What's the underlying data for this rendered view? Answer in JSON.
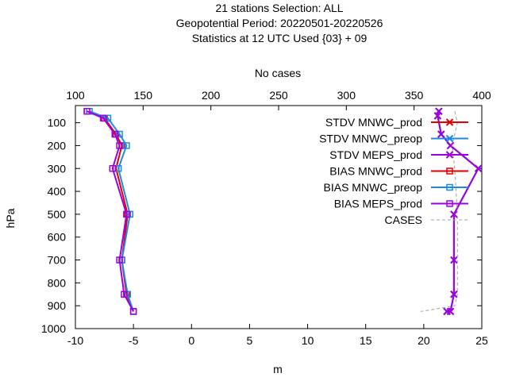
{
  "chart_data": {
    "type": "line",
    "title_lines": [
      "21 stations Selection: ALL",
      "Geopotential  Period: 20220501-20220526",
      "Statistics at 12 UTC  Used {03} + 09"
    ],
    "xlabel": "m",
    "ylabel": "hPa",
    "x2label": "No cases",
    "xlim": [
      -10,
      25
    ],
    "ylim": [
      1000,
      25
    ],
    "y_reversed": true,
    "x2lim": [
      100,
      400
    ],
    "xticks": [
      -10,
      -5,
      0,
      5,
      10,
      15,
      20,
      25
    ],
    "yticks": [
      100,
      200,
      300,
      400,
      500,
      600,
      700,
      800,
      900,
      1000
    ],
    "x2ticks": [
      100,
      150,
      200,
      250,
      300,
      350,
      400
    ],
    "legend_position": "top-right",
    "series": [
      {
        "name": "STDV MNWC_prod",
        "color": "#e00000",
        "marker": "x",
        "dash": "",
        "x": [
          21.3,
          21.2,
          21.5,
          22.3,
          24.7,
          22.6,
          22.6,
          22.6,
          22.3,
          22.0
        ],
        "y": [
          50,
          70,
          150,
          200,
          300,
          500,
          700,
          850,
          925,
          925
        ]
      },
      {
        "name": "STDV MNWC_preop",
        "color": "#1a8ce0",
        "marker": "x",
        "dash": "",
        "x": [
          21.3,
          21.2,
          21.5,
          22.3,
          24.7,
          22.6,
          22.6,
          22.6,
          22.3,
          22.0
        ],
        "y": [
          50,
          70,
          150,
          200,
          300,
          500,
          700,
          850,
          925,
          925
        ]
      },
      {
        "name": "STDV MEPS_prod",
        "color": "#a000e0",
        "marker": "x",
        "dash": "",
        "x": [
          21.3,
          21.2,
          21.5,
          22.3,
          24.7,
          22.6,
          22.6,
          22.6,
          22.3,
          22.0
        ],
        "y": [
          50,
          70,
          150,
          200,
          300,
          500,
          700,
          850,
          925,
          925
        ]
      },
      {
        "name": "BIAS MNWC_prod",
        "color": "#e00000",
        "marker": "square",
        "dash": "",
        "x": [
          -9.0,
          -7.5,
          -6.5,
          -6.0,
          -6.5,
          -5.5,
          -6.0,
          -5.6,
          -5.0
        ],
        "y": [
          50,
          80,
          150,
          200,
          300,
          500,
          700,
          850,
          925
        ]
      },
      {
        "name": "BIAS MNWC_preop",
        "color": "#1a8ce0",
        "marker": "square",
        "dash": "",
        "x": [
          -8.8,
          -7.2,
          -6.2,
          -5.6,
          -6.3,
          -5.3,
          -6.0,
          -5.5,
          -5.0
        ],
        "y": [
          50,
          80,
          150,
          200,
          300,
          500,
          700,
          850,
          925
        ]
      },
      {
        "name": "BIAS MEPS_prod",
        "color": "#a000e0",
        "marker": "square",
        "dash": "",
        "x": [
          -9.0,
          -7.6,
          -6.6,
          -6.2,
          -6.8,
          -5.6,
          -6.2,
          -5.8,
          -5.0
        ],
        "y": [
          50,
          80,
          150,
          200,
          300,
          500,
          700,
          850,
          925
        ]
      },
      {
        "name": "CASES",
        "color": "#a0a0a0",
        "marker": "",
        "dash": "4,3",
        "axis": "x2",
        "x": [
          380,
          382,
          380,
          378,
          380,
          382,
          382,
          382,
          380,
          355
        ],
        "y": [
          50,
          100,
          150,
          200,
          300,
          500,
          700,
          850,
          900,
          925
        ]
      }
    ]
  }
}
